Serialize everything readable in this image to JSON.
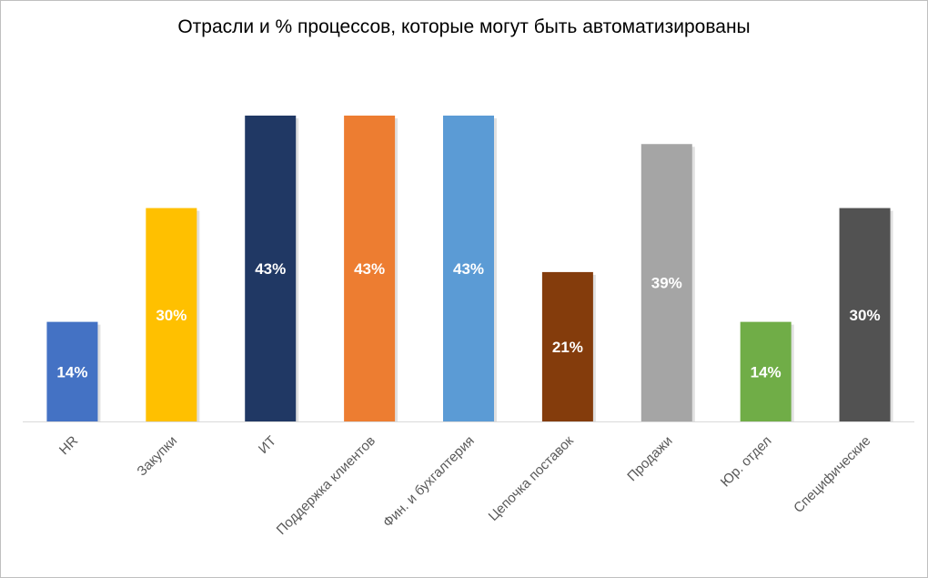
{
  "chart_data": {
    "type": "bar",
    "title": "Отрасли и % процессов, которые могут быть автоматизированы",
    "categories": [
      "HR",
      "Закупки",
      "ИТ",
      "Поддержка клиентов",
      "Фин. и бухгалтерия",
      "Цепочка поставок",
      "Продажи",
      "Юр. отдел",
      "Специфические"
    ],
    "values": [
      14,
      30,
      43,
      43,
      43,
      21,
      39,
      14,
      30
    ],
    "labels": [
      "14%",
      "30%",
      "43%",
      "43%",
      "43%",
      "21%",
      "39%",
      "14%",
      "30%"
    ],
    "colors": [
      "#4472C4",
      "#FFC000",
      "#203864",
      "#ED7D31",
      "#5B9BD5",
      "#843C0C",
      "#A5A5A5",
      "#70AD47",
      "#525252"
    ],
    "xlabel": "",
    "ylabel": "",
    "ylim": [
      0,
      43
    ],
    "grid": false,
    "legend": "none"
  }
}
